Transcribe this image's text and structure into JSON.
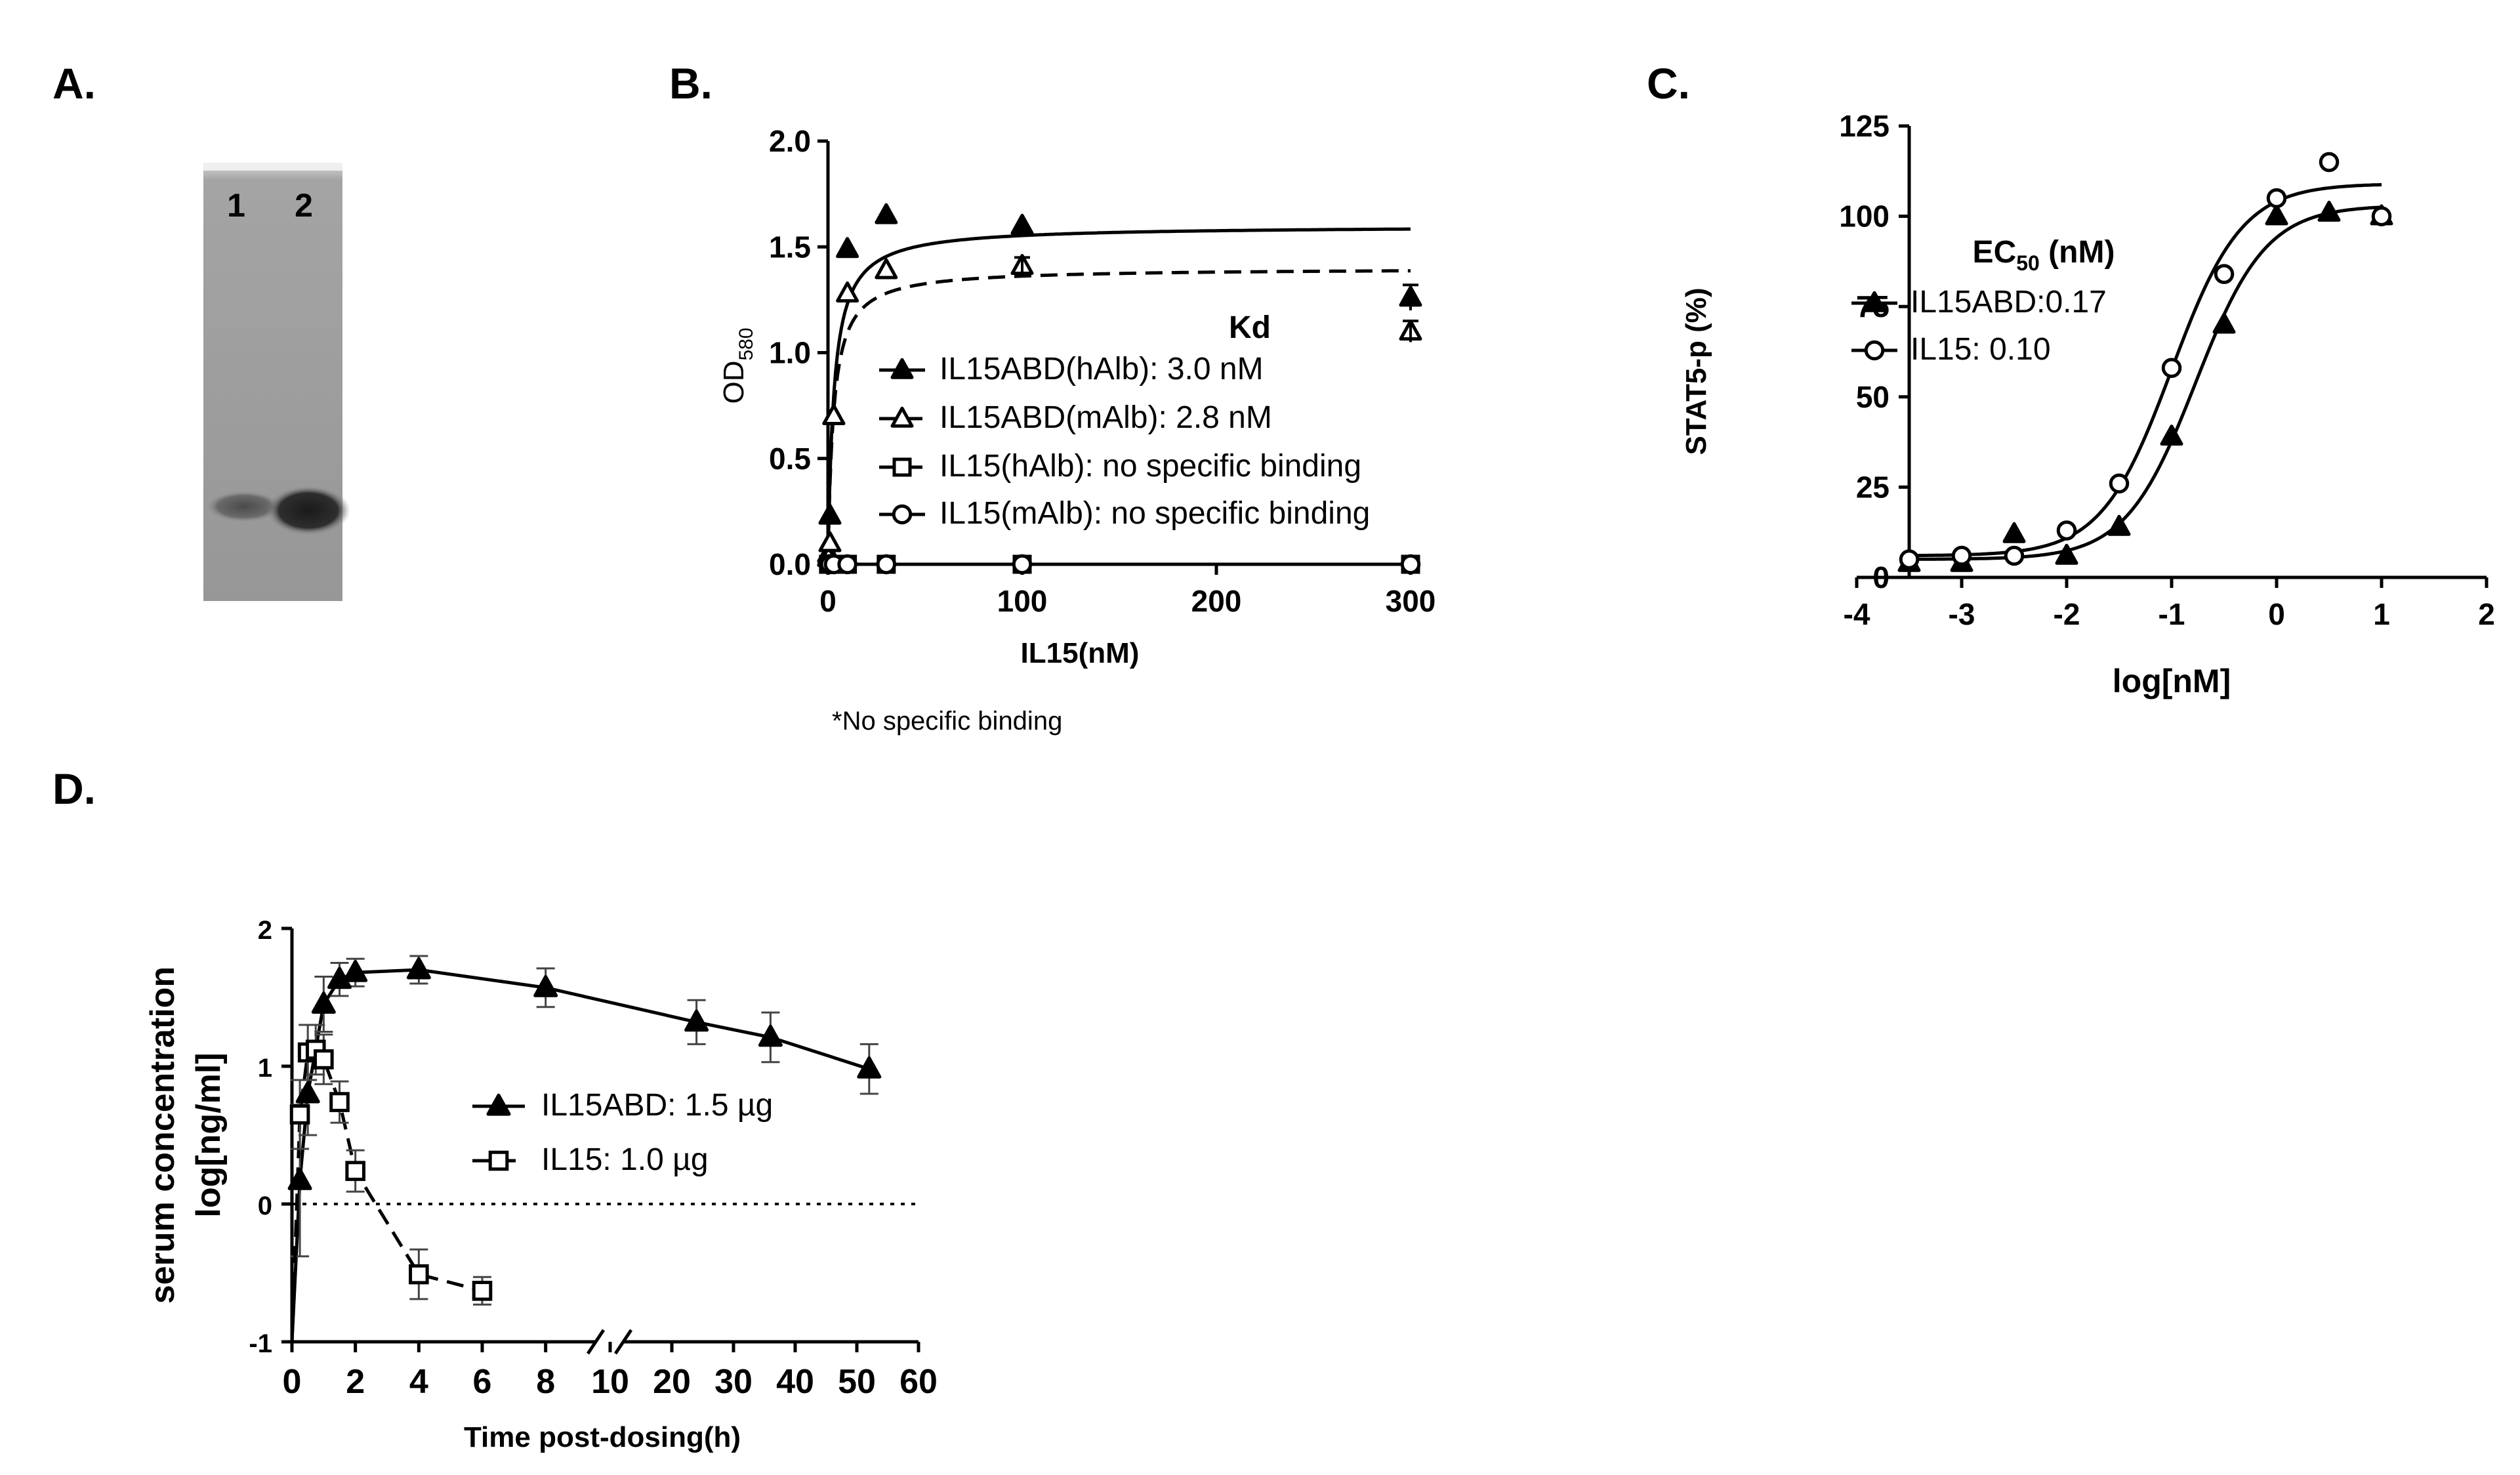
{
  "colors": {
    "ink": "#000000",
    "background": "#ffffff",
    "gel_bg": "#9a9a9a",
    "gel_band": "#3a3a3a"
  },
  "panels": {
    "a": {
      "label": "A.",
      "lanes": [
        "1",
        "2"
      ]
    },
    "b": {
      "label": "B.",
      "note": "*No specific binding"
    },
    "c": {
      "label": "C."
    },
    "d": {
      "label": "D."
    }
  },
  "chart_data": [
    {
      "id": "B",
      "type": "scatter",
      "xlabel": "IL15(nM)",
      "ylabel": "OD",
      "ylabel_sub": "580",
      "xlim": [
        0,
        300
      ],
      "ylim": [
        0,
        2.0
      ],
      "x_ticks": [
        0,
        100,
        200,
        300
      ],
      "x_tick_labels": [
        "0",
        "100",
        "200",
        "300"
      ],
      "y_ticks": [
        0,
        0.5,
        1.0,
        1.5,
        2.0
      ],
      "y_tick_labels": [
        "0.0",
        "0.5",
        "1.0",
        "1.5",
        "2.0"
      ],
      "legend_title": "Kd",
      "series": [
        {
          "name": "IL15ABD(hAlb): 3.0 nM",
          "marker": "triangle",
          "line": "solid",
          "fit": {
            "bmax": 1.6,
            "kd": 3.0
          },
          "x": [
            0.3,
            1,
            3,
            10,
            30,
            100,
            300
          ],
          "y": [
            0.05,
            0.23,
            0.7,
            1.49,
            1.65,
            1.6,
            1.26
          ]
        },
        {
          "name": "IL15ABD(mAlb): 2.8 nM",
          "marker": "triangle-open",
          "line": "dashed",
          "fit": {
            "bmax": 1.4,
            "kd": 2.8
          },
          "x": [
            0.3,
            1,
            3,
            10,
            30,
            100,
            300
          ],
          "y": [
            0.03,
            0.1,
            0.7,
            1.28,
            1.39,
            1.41,
            1.1
          ]
        },
        {
          "name": "IL15(hAlb): no specific binding",
          "marker": "square-open",
          "line": "dashed",
          "fit": {
            "bmax": 0.0,
            "kd": 1
          },
          "x": [
            0.3,
            1,
            3,
            10,
            30,
            100,
            300
          ],
          "y": [
            0,
            0,
            0,
            0,
            0,
            0,
            0
          ]
        },
        {
          "name": "IL15(mAlb): no specific binding",
          "marker": "circle-open",
          "line": "dashdot",
          "fit": {
            "bmax": 0.0,
            "kd": 1
          },
          "x": [
            0.3,
            1,
            3,
            10,
            30,
            100,
            300
          ],
          "y": [
            0,
            0,
            0,
            0,
            0,
            0,
            0
          ]
        }
      ]
    },
    {
      "id": "C",
      "type": "scatter",
      "xlabel": "log[nM]",
      "ylabel": "STAT5-p (%)",
      "xlim": [
        -4,
        2
      ],
      "ylim": [
        0,
        125
      ],
      "x_ticks": [
        -4,
        -3,
        -2,
        -1,
        0,
        1,
        2
      ],
      "x_tick_labels": [
        "-4",
        "-3",
        "-2",
        "-1",
        "0",
        "1",
        "2"
      ],
      "y_ticks": [
        0,
        25,
        50,
        75,
        100,
        125
      ],
      "y_tick_labels": [
        "0",
        "25",
        "50",
        "75",
        "100",
        "125"
      ],
      "legend_title": "EC",
      "legend_title_sub": "50",
      "legend_title_suffix": " (nM)",
      "series": [
        {
          "name": "IL15ABD:0.17",
          "marker": "triangle",
          "fit": {
            "bottom": 5,
            "top": 103,
            "logec50": -0.77,
            "hill": 1.3
          },
          "x": [
            -3.5,
            -3,
            -2.5,
            -2,
            -1.5,
            -1,
            -0.5,
            0,
            0.5,
            1
          ],
          "y": [
            4,
            4,
            12,
            6,
            14,
            39,
            70,
            100,
            101,
            100
          ]
        },
        {
          "name": "IL15: 0.10",
          "marker": "circle-open",
          "fit": {
            "bottom": 6,
            "top": 109,
            "logec50": -1.0,
            "hill": 1.3
          },
          "x": [
            -3.5,
            -3,
            -2.5,
            -2,
            -1.5,
            -1,
            -0.5,
            0,
            0.5,
            1
          ],
          "y": [
            5,
            6,
            6,
            13,
            26,
            58,
            84,
            105,
            115,
            100
          ]
        }
      ]
    },
    {
      "id": "D",
      "type": "line",
      "xlabel": "Time post-dosing(h)",
      "ylabel_line1": "serum concentration",
      "ylabel_line2": "log[ng/ml]",
      "ylim": [
        -1,
        2
      ],
      "x_break": {
        "left_range": [
          0,
          9
        ],
        "right_range": [
          10,
          60
        ]
      },
      "x_ticks": [
        0,
        2,
        4,
        6,
        8,
        10,
        20,
        30,
        40,
        50,
        60
      ],
      "x_tick_labels": [
        "0",
        "2",
        "4",
        "6",
        "8",
        "10",
        "20",
        "30",
        "40",
        "50",
        "60"
      ],
      "y_ticks": [
        -1,
        0,
        1,
        2
      ],
      "y_tick_labels": [
        "-1",
        "0",
        "1",
        "2"
      ],
      "reference_line_y": 0,
      "series": [
        {
          "name": "IL15ABD: 1.5 µg",
          "marker": "triangle",
          "line": "solid",
          "x": [
            0,
            0.25,
            0.5,
            1,
            1.5,
            2,
            4,
            8,
            24,
            36,
            52
          ],
          "y": [
            -1,
            0.17,
            0.8,
            1.45,
            1.63,
            1.68,
            1.7,
            1.57,
            1.32,
            1.21,
            0.98
          ],
          "err": [
            0,
            0.55,
            0.3,
            0.2,
            0.12,
            0.1,
            0.1,
            0.14,
            0.16,
            0.18,
            0.18
          ]
        },
        {
          "name": "IL15: 1.0 µg",
          "marker": "square-open",
          "line": "dashed",
          "x": [
            0,
            0.25,
            0.5,
            0.75,
            1,
            1.5,
            2,
            4,
            6
          ],
          "y": [
            -1,
            0.65,
            1.1,
            1.12,
            1.05,
            0.74,
            0.24,
            -0.51,
            -0.63
          ],
          "err": [
            0,
            0.25,
            0.2,
            0.18,
            0.18,
            0.15,
            0.15,
            0.18,
            0.1
          ]
        }
      ]
    }
  ]
}
